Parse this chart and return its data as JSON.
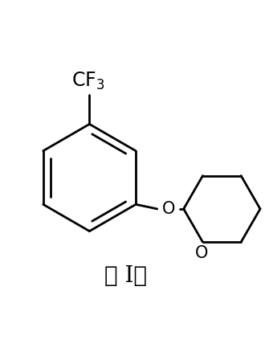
{
  "bg_color": "#ffffff",
  "line_color": "#000000",
  "line_width": 2.0,
  "fig_width": 3.35,
  "fig_height": 4.28,
  "dpi": 100,
  "cf3_label": "CF$_3$",
  "cf3_fontsize": 17,
  "o_fontsize": 15,
  "caption": "式 I；",
  "caption_fontsize": 20
}
